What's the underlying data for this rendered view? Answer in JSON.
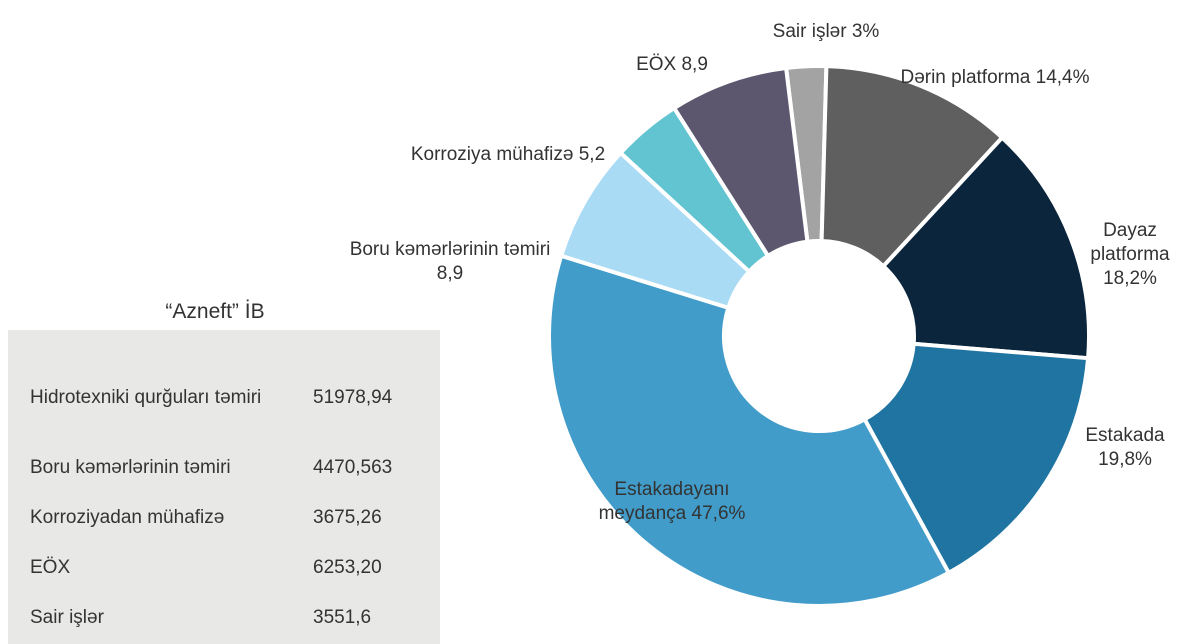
{
  "chart_data": {
    "type": "donut",
    "categories": [
      "Sair işlər",
      "Dərin platforma",
      "Dayaz platforma",
      "Estakada",
      "Estakadayanı meydança",
      "Boru  kəmərlərinin təmiri",
      "Korroziya mühafizə",
      "EÖX"
    ],
    "values": [
      3,
      14.4,
      18.2,
      19.8,
      47.6,
      8.9,
      5.2,
      8.9
    ],
    "value_labels": [
      "3%",
      "14,4%",
      "18,2%",
      "19,8%",
      "47,6%",
      "8,9",
      "5,2",
      "8,9"
    ],
    "colors": [
      "#a3a3a3",
      "#5f5f5f",
      "#0b253d",
      "#2074a1",
      "#419cc9",
      "#a9dbf4",
      "#62c3d1",
      "#5c576f"
    ]
  },
  "table": {
    "title": "“Azneft” İB",
    "rows": [
      [
        "Hidrotexniki qurğuları təmiri",
        "51978,94"
      ],
      [
        "Boru kəmərlərinin təmiri",
        "4470,563"
      ],
      [
        "Korroziyadan mühafizə",
        "3675,26"
      ],
      [
        "EÖX",
        "6253,20"
      ],
      [
        "Sair işlər",
        "3551,6"
      ]
    ]
  }
}
